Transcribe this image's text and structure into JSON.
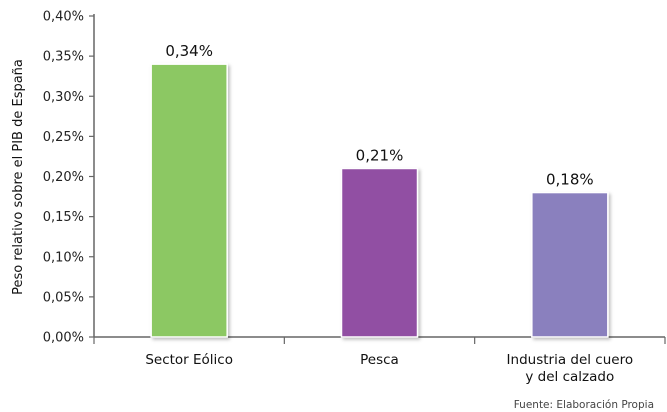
{
  "chart_data": {
    "type": "bar",
    "categories": [
      "Sector Eólico",
      "Pesca",
      "Industria del cuero\ny del calzado"
    ],
    "values": [
      0.34,
      0.21,
      0.18
    ],
    "data_labels": [
      "0,34%",
      "0,21%",
      "0,18%"
    ],
    "bar_colors": [
      "#8cc863",
      "#9150a3",
      "#8a80be"
    ],
    "ylabel": "Peso relativo sobre el PIB de España",
    "xlabel": "",
    "ylim": [
      0,
      0.4
    ],
    "y_ticks": [
      0.0,
      0.05,
      0.1,
      0.15,
      0.2,
      0.25,
      0.3,
      0.35,
      0.4
    ],
    "y_tick_labels": [
      "0,00%",
      "0,05%",
      "0,10%",
      "0,15%",
      "0,20%",
      "0,25%",
      "0,30%",
      "0,35%",
      "0,40%"
    ],
    "grid": false,
    "source_note": "Fuente: Elaboración Propia"
  }
}
